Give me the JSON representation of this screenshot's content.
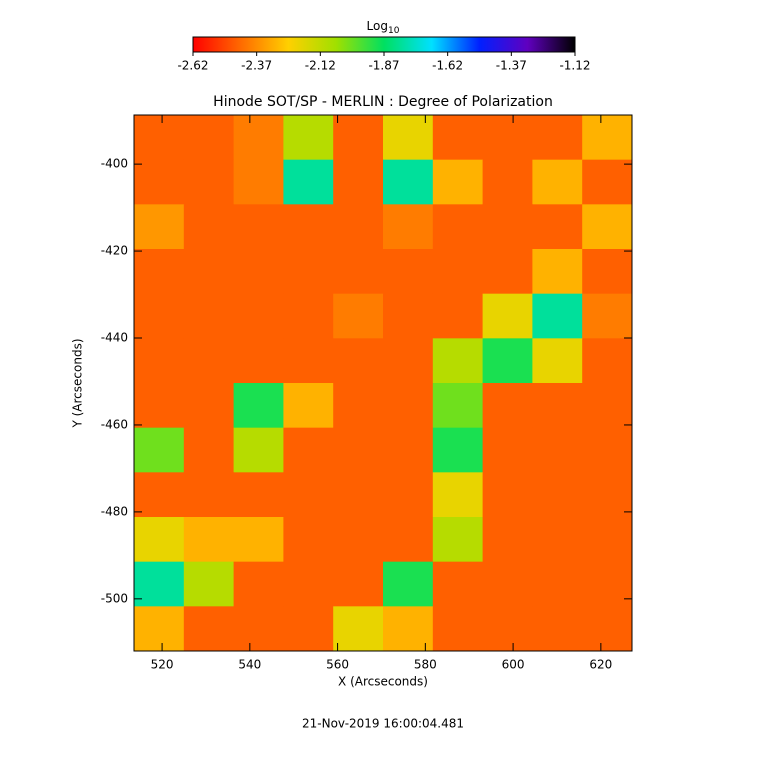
{
  "chart_data": {
    "type": "heatmap",
    "title": "Hinode SOT/SP - MERLIN : Degree of Polarization",
    "xlabel": "X (Arcseconds)",
    "ylabel": "Y (Arcseconds)",
    "footer": "21-Nov-2019 16:00:04.481",
    "colorbar_label": "Log",
    "colorbar_label_sub": "10",
    "clim": [
      -2.62,
      -1.12
    ],
    "cticks": [
      -2.62,
      -2.37,
      -2.12,
      -1.87,
      -1.62,
      -1.37,
      -1.12
    ],
    "colormap": [
      "#ff0000",
      "#ff6a00",
      "#ffd000",
      "#a0e000",
      "#00e060",
      "#00e0ff",
      "#0020ff",
      "#6000c0",
      "#000000"
    ],
    "xlim": [
      513.6,
      627.1
    ],
    "ylim": [
      -512.0,
      -388.7
    ],
    "xticks": [
      520,
      540,
      560,
      580,
      600,
      620
    ],
    "yticks": [
      -400,
      -420,
      -440,
      -460,
      -480,
      -500
    ],
    "z": [
      [
        -2.45,
        -2.45,
        -2.4,
        -2.1,
        -2.45,
        -2.2,
        -2.45,
        -2.45,
        -2.45,
        -2.3
      ],
      [
        -2.45,
        -2.45,
        -2.4,
        -1.8,
        -2.45,
        -1.8,
        -2.3,
        -2.45,
        -2.3,
        -2.45
      ],
      [
        -2.35,
        -2.45,
        -2.45,
        -2.45,
        -2.45,
        -2.4,
        -2.45,
        -2.45,
        -2.45,
        -2.3
      ],
      [
        -2.45,
        -2.45,
        -2.45,
        -2.45,
        -2.45,
        -2.45,
        -2.45,
        -2.45,
        -2.3,
        -2.45
      ],
      [
        -2.45,
        -2.45,
        -2.45,
        -2.45,
        -2.4,
        -2.45,
        -2.45,
        -2.2,
        -1.8,
        -2.4
      ],
      [
        -2.45,
        -2.45,
        -2.45,
        -2.45,
        -2.45,
        -2.45,
        -2.1,
        -1.9,
        -2.2,
        -2.45
      ],
      [
        -2.45,
        -2.45,
        -1.9,
        -2.3,
        -2.45,
        -2.45,
        -2.0,
        -2.45,
        -2.45,
        -2.45
      ],
      [
        -2.0,
        -2.45,
        -2.1,
        -2.45,
        -2.45,
        -2.45,
        -1.9,
        -2.45,
        -2.45,
        -2.45
      ],
      [
        -2.45,
        -2.45,
        -2.45,
        -2.45,
        -2.45,
        -2.45,
        -2.2,
        -2.45,
        -2.45,
        -2.45
      ],
      [
        -2.2,
        -2.3,
        -2.3,
        -2.45,
        -2.45,
        -2.45,
        -2.1,
        -2.45,
        -2.45,
        -2.45
      ],
      [
        -1.8,
        -2.1,
        -2.45,
        -2.45,
        -2.45,
        -1.9,
        -2.45,
        -2.45,
        -2.45,
        -2.45
      ],
      [
        -2.3,
        -2.45,
        -2.45,
        -2.45,
        -2.2,
        -2.3,
        -2.45,
        -2.45,
        -2.45,
        -2.45
      ]
    ]
  }
}
